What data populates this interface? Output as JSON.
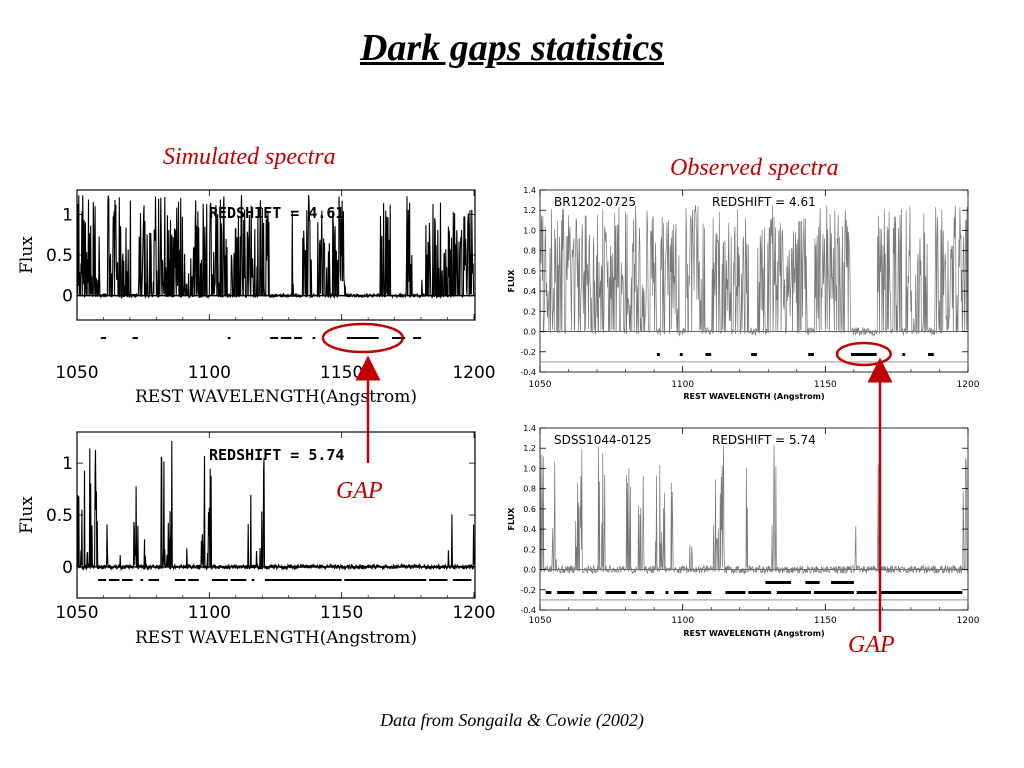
{
  "title": "Dark gaps statistics",
  "simulated_label": "Simulated spectra",
  "observed_label": "Observed spectra",
  "gap_label_1": "GAP",
  "gap_label_2": "GAP",
  "source": "Data from Songaila & Cowie  (2002)",
  "colors": {
    "accent": "#c00000",
    "sim_line": "#000000",
    "obs_line": "#777777"
  },
  "chart_data": [
    {
      "id": "sim1",
      "type": "line",
      "panel_text": "REDSHIFT = 4.61",
      "xlabel": "REST WAVELENGTH(Angstrom)",
      "ylabel": "Flux",
      "xlim": [
        1050,
        1200
      ],
      "ylim": [
        -0.3,
        1.3
      ],
      "xticks": [
        "1050",
        "1100",
        "1150",
        "1200"
      ],
      "yticks": [
        "0",
        "0.5",
        "1"
      ],
      "gaps": [
        [
          1059,
          1061
        ],
        [
          1071,
          1073
        ],
        [
          1107,
          1108
        ],
        [
          1123,
          1126
        ],
        [
          1127,
          1131
        ],
        [
          1132,
          1135
        ],
        [
          1139,
          1140
        ],
        [
          1152,
          1164
        ],
        [
          1169,
          1174
        ],
        [
          1177,
          1180
        ]
      ],
      "highlight_gap": [
        1152,
        1164
      ],
      "seed": 7,
      "density": 0.34
    },
    {
      "id": "sim2",
      "type": "line",
      "panel_text": "REDSHIFT = 5.74",
      "xlabel": "REST WAVELENGTH(Angstrom)",
      "ylabel": "Flux",
      "xlim": [
        1050,
        1200
      ],
      "ylim": [
        -0.3,
        1.3
      ],
      "xticks": [
        "1050",
        "1100",
        "1150",
        "1200"
      ],
      "yticks": [
        "0",
        "0.5",
        "1"
      ],
      "gaps": [
        [
          1058,
          1061
        ],
        [
          1062,
          1066
        ],
        [
          1067,
          1071
        ],
        [
          1074,
          1075
        ],
        [
          1077,
          1081
        ],
        [
          1087,
          1091
        ],
        [
          1092,
          1096
        ],
        [
          1101,
          1107
        ],
        [
          1108,
          1114
        ],
        [
          1116,
          1117
        ],
        [
          1121,
          1150
        ],
        [
          1151,
          1182
        ],
        [
          1183,
          1190
        ],
        [
          1192,
          1199
        ]
      ],
      "seed": 13,
      "density": 0.16
    },
    {
      "id": "obs1",
      "type": "line",
      "panel_text": "REDSHIFT = 4.61",
      "object_name": "BR1202-0725",
      "xlabel": "REST WAVELENGTH (Angstrom)",
      "ylabel": "FLUX",
      "xlim": [
        1050,
        1200
      ],
      "ylim": [
        -0.4,
        1.4
      ],
      "xticks": [
        "1050",
        "1100",
        "1150",
        "1200"
      ],
      "yticks": [
        "-0.4",
        "-0.2",
        "0.0",
        "0.2",
        "0.4",
        "0.6",
        "0.8",
        "1.0",
        "1.2",
        "1.4"
      ],
      "gaps": [
        [
          1091,
          1092
        ],
        [
          1099,
          1100
        ],
        [
          1108,
          1110
        ],
        [
          1124,
          1126
        ],
        [
          1144,
          1146
        ],
        [
          1159,
          1168
        ],
        [
          1177,
          1178
        ],
        [
          1186,
          1188
        ]
      ],
      "highlight_gap": [
        1159,
        1168
      ],
      "seed": 21,
      "density": 0.55
    },
    {
      "id": "obs2",
      "type": "line",
      "panel_text": "REDSHIFT = 5.74",
      "object_name": "SDSS1044-0125",
      "xlabel": "REST WAVELENGTH (Angstrom)",
      "ylabel": "FLUX",
      "xlim": [
        1050,
        1200
      ],
      "ylim": [
        -0.4,
        1.4
      ],
      "xticks": [
        "1050",
        "1100",
        "1150",
        "1200"
      ],
      "yticks": [
        "-0.4",
        "-0.2",
        "0.0",
        "0.2",
        "0.4",
        "0.6",
        "0.8",
        "1.0",
        "1.2",
        "1.4"
      ],
      "gaps": [
        [
          1052,
          1054
        ],
        [
          1056,
          1062
        ],
        [
          1065,
          1070
        ],
        [
          1073,
          1080
        ],
        [
          1082,
          1084
        ],
        [
          1087,
          1090
        ],
        [
          1094,
          1095
        ],
        [
          1097,
          1102
        ],
        [
          1105,
          1110
        ],
        [
          1115,
          1122
        ],
        [
          1123,
          1131
        ],
        [
          1133,
          1145
        ],
        [
          1146,
          1160
        ],
        [
          1161,
          1168
        ],
        [
          1169,
          1198
        ]
      ],
      "gaps_upper": [
        [
          1129,
          1138
        ],
        [
          1143,
          1148
        ],
        [
          1152,
          1160
        ]
      ],
      "seed": 5,
      "density": 0.28
    }
  ]
}
